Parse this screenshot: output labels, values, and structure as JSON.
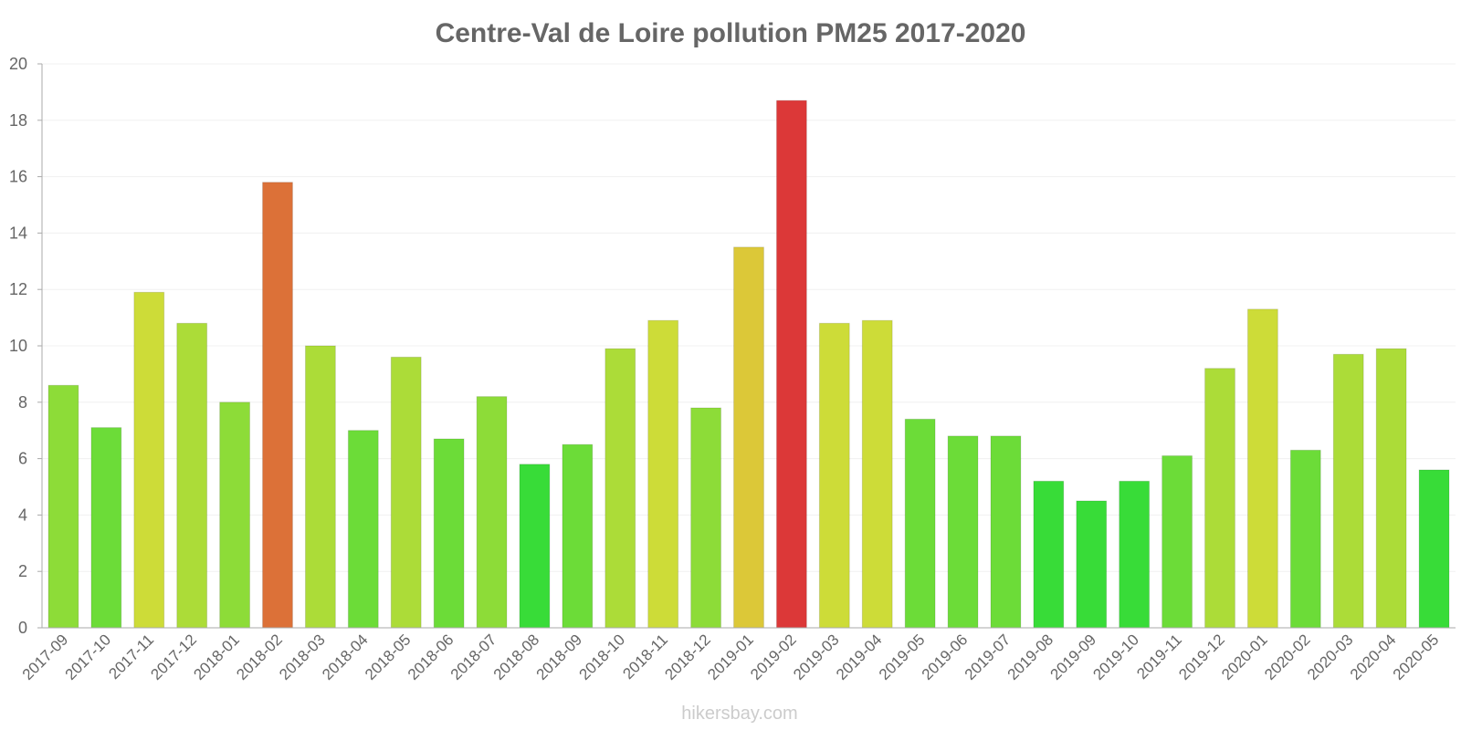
{
  "chart_data": {
    "type": "bar",
    "title": "Centre-Val de Loire pollution PM25 2017-2020",
    "xlabel": "",
    "ylabel": "",
    "ylim": [
      0,
      20
    ],
    "yticks": [
      "0",
      "2",
      "4",
      "6",
      "8",
      "10",
      "12",
      "14",
      "16",
      "18",
      "20"
    ],
    "categories": [
      "2017-09",
      "2017-10",
      "2017-11",
      "2017-12",
      "2018-01",
      "2018-02",
      "2018-03",
      "2018-04",
      "2018-05",
      "2018-06",
      "2018-07",
      "2018-08",
      "2018-09",
      "2018-10",
      "2018-11",
      "2018-12",
      "2019-01",
      "2019-02",
      "2019-03",
      "2019-04",
      "2019-05",
      "2019-06",
      "2019-07",
      "2019-08",
      "2019-09",
      "2019-10",
      "2019-11",
      "2019-12",
      "2020-01",
      "2020-02",
      "2020-03",
      "2020-04",
      "2020-05"
    ],
    "values": [
      8.6,
      7.1,
      11.9,
      10.8,
      8.0,
      15.8,
      10.0,
      7.0,
      9.6,
      6.7,
      8.2,
      5.8,
      6.5,
      9.9,
      10.9,
      7.8,
      13.5,
      18.7,
      10.8,
      10.9,
      7.4,
      6.8,
      6.8,
      5.2,
      4.5,
      5.2,
      6.1,
      9.2,
      11.3,
      6.3,
      9.7,
      9.9,
      5.6
    ],
    "colors": [
      "#8ddc38",
      "#6cdc38",
      "#cddc38",
      "#acdc38",
      "#8ddc38",
      "#dc7138",
      "#acdc38",
      "#6cdc38",
      "#acdc38",
      "#6cdc38",
      "#8ddc38",
      "#38dc38",
      "#6cdc38",
      "#acdc38",
      "#cddc38",
      "#8ddc38",
      "#dcc838",
      "#dc3838",
      "#cddc38",
      "#cddc38",
      "#6cdc38",
      "#6cdc38",
      "#6cdc38",
      "#38dc38",
      "#38dc38",
      "#38dc38",
      "#6cdc38",
      "#acdc38",
      "#cddc38",
      "#6cdc38",
      "#acdc38",
      "#acdc38",
      "#38dc38"
    ],
    "grid": true,
    "legend": "none",
    "watermark": "hikersbay.com"
  }
}
